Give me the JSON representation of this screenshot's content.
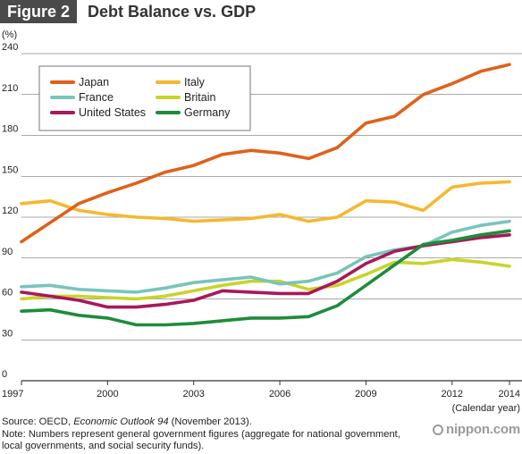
{
  "header": {
    "badge": "Figure 2",
    "title": "Debt Balance vs. GDP"
  },
  "footer": {
    "source_prefix": "Source: OECD, ",
    "source_italic": "Economic Outlook 94",
    "source_suffix": " (November 2013).",
    "note": "Note: Numbers represent general government figures (aggregate for national government, local governments, and social security funds).",
    "brand": "nippon.com"
  },
  "chart_data": {
    "type": "line",
    "title": "Debt Balance vs. GDP",
    "ylabel": "(%)",
    "xlabel": "(Calendar year)",
    "ylim": [
      0,
      240
    ],
    "xlim": [
      1997,
      2014
    ],
    "yticks": [
      0,
      30,
      60,
      90,
      120,
      150,
      180,
      210,
      240
    ],
    "xticks": [
      1997,
      2000,
      2003,
      2006,
      2009,
      2012,
      2014
    ],
    "grid": true,
    "legend_position": "top-left",
    "x": [
      1997,
      1998,
      1999,
      2000,
      2001,
      2002,
      2003,
      2004,
      2005,
      2006,
      2007,
      2008,
      2009,
      2010,
      2011,
      2012,
      2013,
      2014
    ],
    "series": [
      {
        "name": "Japan",
        "color": "#e0611b",
        "values": [
          102,
          116,
          130,
          138,
          145,
          153,
          158,
          166,
          169,
          167,
          163,
          171,
          189,
          194,
          210,
          218,
          227,
          232
        ]
      },
      {
        "name": "France",
        "color": "#79c4bb",
        "values": [
          69,
          70,
          67,
          66,
          65,
          68,
          72,
          74,
          76,
          71,
          73,
          79,
          91,
          96,
          99,
          109,
          114,
          117
        ]
      },
      {
        "name": "United States",
        "color": "#a8185a",
        "values": [
          65,
          62,
          59,
          54,
          54,
          56,
          59,
          66,
          65,
          64,
          64,
          73,
          86,
          95,
          99,
          102,
          105,
          107
        ]
      },
      {
        "name": "Italy",
        "color": "#f5b82e",
        "values": [
          130,
          132,
          125,
          122,
          120,
          119,
          117,
          118,
          119,
          122,
          117,
          120,
          132,
          131,
          125,
          142,
          145,
          146
        ]
      },
      {
        "name": "Britain",
        "color": "#c8d42a",
        "values": [
          60,
          62,
          62,
          61,
          60,
          62,
          66,
          70,
          73,
          73,
          67,
          70,
          78,
          87,
          86,
          89,
          87,
          84
        ]
      },
      {
        "name": "Germany",
        "color": "#1f8c3b",
        "values": [
          51,
          52,
          48,
          46,
          41,
          41,
          42,
          44,
          46,
          46,
          47,
          55,
          70,
          85,
          100,
          103,
          107,
          110
        ]
      }
    ]
  }
}
